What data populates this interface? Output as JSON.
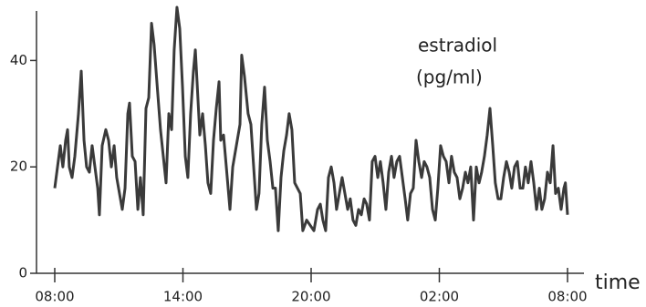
{
  "chart_data": {
    "type": "line",
    "xlabel": "time",
    "annotations": [
      "estradiol",
      "(pg/ml)"
    ],
    "xlim": [
      0,
      24
    ],
    "ylim": [
      0,
      50
    ],
    "xticks": [
      {
        "value": 0,
        "label": "08:00"
      },
      {
        "value": 6,
        "label": "14:00"
      },
      {
        "value": 12,
        "label": "20:00"
      },
      {
        "value": 18,
        "label": "02:00"
      },
      {
        "value": 24,
        "label": "08:00"
      }
    ],
    "yticks": [
      0,
      20,
      40
    ],
    "color": "#3a3a3a",
    "x": [
      0,
      0.13,
      0.26,
      0.38,
      0.51,
      0.6,
      0.68,
      0.81,
      0.94,
      1.11,
      1.24,
      1.37,
      1.49,
      1.62,
      1.75,
      1.88,
      2.01,
      2.09,
      2.22,
      2.39,
      2.52,
      2.65,
      2.78,
      2.9,
      3.03,
      3.16,
      3.29,
      3.42,
      3.5,
      3.63,
      3.76,
      3.89,
      4.01,
      4.14,
      4.27,
      4.4,
      4.53,
      4.65,
      4.78,
      4.95,
      5.08,
      5.21,
      5.34,
      5.47,
      5.59,
      5.72,
      5.85,
      5.98,
      6.11,
      6.23,
      6.36,
      6.49,
      6.58,
      6.66,
      6.79,
      6.92,
      7.05,
      7.17,
      7.3,
      7.43,
      7.56,
      7.69,
      7.77,
      7.9,
      8.03,
      8.2,
      8.33,
      8.5,
      8.67,
      8.75,
      8.88,
      9.05,
      9.18,
      9.31,
      9.44,
      9.56,
      9.69,
      9.82,
      9.95,
      10.08,
      10.21,
      10.33,
      10.46,
      10.59,
      10.72,
      10.85,
      10.97,
      11.1,
      11.23,
      11.36,
      11.49,
      11.61,
      11.79,
      11.96,
      12.13,
      12.3,
      12.43,
      12.55,
      12.68,
      12.81,
      12.94,
      13.07,
      13.19,
      13.32,
      13.45,
      13.58,
      13.71,
      13.83,
      13.96,
      14.09,
      14.22,
      14.35,
      14.48,
      14.6,
      14.73,
      14.86,
      14.99,
      15.12,
      15.24,
      15.37,
      15.5,
      15.63,
      15.76,
      15.88,
      16.01,
      16.14,
      16.27,
      16.4,
      16.52,
      16.65,
      16.78,
      16.91,
      17.04,
      17.17,
      17.29,
      17.42,
      17.55,
      17.68,
      17.81,
      17.93,
      18.06,
      18.19,
      18.32,
      18.45,
      18.57,
      18.7,
      18.83,
      18.96,
      19.09,
      19.22,
      19.34,
      19.47,
      19.6,
      19.73,
      19.86,
      19.98,
      20.11,
      20.24,
      20.37,
      20.5,
      20.62,
      20.75,
      20.88,
      21.01,
      21.14,
      21.27,
      21.39,
      21.52,
      21.65,
      21.78,
      21.91,
      22.03,
      22.16,
      22.29,
      22.42,
      22.55,
      22.68,
      22.8,
      22.93,
      23.06,
      23.19,
      23.32,
      23.44,
      23.57,
      23.7,
      23.83,
      23.9,
      24
    ],
    "values": [
      16,
      20,
      24,
      20,
      25,
      27,
      20,
      18,
      22,
      30,
      38,
      25,
      20,
      19,
      24,
      20,
      16,
      11,
      24,
      27,
      25,
      20,
      24,
      18,
      15,
      12,
      16,
      30,
      32,
      22,
      21,
      12,
      18,
      11,
      31,
      33,
      47,
      43,
      36,
      27,
      22,
      17,
      30,
      27,
      42,
      50,
      46,
      35,
      22,
      18,
      30,
      38,
      42,
      36,
      26,
      30,
      24,
      17,
      15,
      25,
      31,
      36,
      25,
      26,
      20,
      12,
      20,
      24,
      28,
      41,
      37,
      30,
      28,
      20,
      12,
      15,
      28,
      35,
      25,
      21,
      16,
      16,
      8,
      18,
      23,
      26,
      30,
      27,
      17,
      16,
      15,
      8,
      10,
      9,
      8,
      12,
      13,
      10,
      8,
      18,
      20,
      17,
      12,
      15,
      18,
      15,
      12,
      14,
      10,
      9,
      12,
      11,
      14,
      13,
      10,
      21,
      22,
      18,
      21,
      17,
      12,
      19,
      22,
      18,
      21,
      22,
      18,
      14,
      10,
      15,
      16,
      25,
      21,
      18,
      21,
      20,
      18,
      12,
      10,
      16,
      24,
      22,
      21,
      17,
      22,
      19,
      18,
      14,
      16,
      19,
      17,
      20,
      10,
      20,
      17,
      19,
      22,
      26,
      31,
      24,
      17,
      14,
      14,
      18,
      21,
      19,
      16,
      20,
      21,
      16,
      16,
      20,
      17,
      21,
      17,
      12,
      16,
      12,
      14,
      19,
      17,
      24,
      15,
      16,
      12,
      16,
      17,
      11
    ]
  }
}
